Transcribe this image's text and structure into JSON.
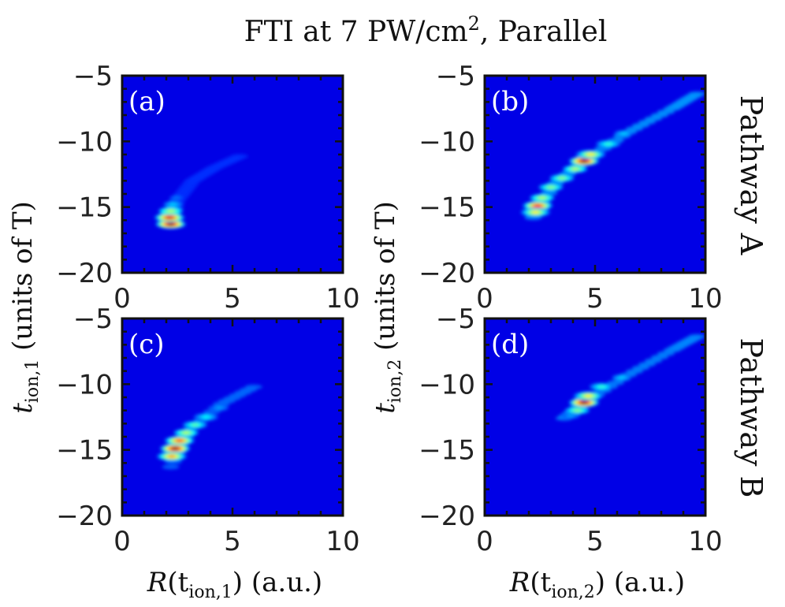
{
  "figure": {
    "title_main": "FTI at 7 PW/cm",
    "title_sup": "2",
    "title_tail": ", Parallel",
    "ylabel_left": {
      "var": "t",
      "sub": "ion,1",
      "rest": " (units of T)"
    },
    "ylabel_right": {
      "var": "t",
      "sub": "ion,2",
      "rest": " (units of T)"
    },
    "xlabel_left": {
      "var": "R",
      "open": "(t",
      "sub": "ion,1",
      "rest": ") (a.u.)"
    },
    "xlabel_right": {
      "var": "R",
      "open": "(t",
      "sub": "ion,2",
      "rest": ") (a.u.)"
    },
    "row_labels": [
      "Pathway A",
      "Pathway B"
    ]
  },
  "chart_data": [
    {
      "type": "heatmap",
      "panel_label": "(a)",
      "xlim": [
        0,
        10
      ],
      "ylim": [
        -20,
        -5
      ],
      "xticks": [
        0,
        5,
        10
      ],
      "yticks": [
        -20,
        -15,
        -10,
        -5
      ],
      "colormap": "jet",
      "peaks": [
        {
          "x": 2.2,
          "y": -16.3,
          "intensity": 1.0
        },
        {
          "x": 2.15,
          "y": -15.8,
          "intensity": 0.9
        },
        {
          "x": 2.2,
          "y": -15.3,
          "intensity": 0.5
        },
        {
          "x": 2.3,
          "y": -14.8,
          "intensity": 0.25
        },
        {
          "x": 2.45,
          "y": -14.3,
          "intensity": 0.15
        }
      ],
      "ridge": [
        [
          2.2,
          -16.5
        ],
        [
          2.5,
          -14.5
        ],
        [
          3.2,
          -13
        ],
        [
          4.2,
          -12
        ],
        [
          5.5,
          -11
        ]
      ],
      "ridge_intensity": 0.08
    },
    {
      "type": "heatmap",
      "panel_label": "(b)",
      "xlim": [
        0,
        10
      ],
      "ylim": [
        -20,
        -5
      ],
      "xticks": [
        0,
        5,
        10
      ],
      "yticks": [
        -20,
        -15,
        -10,
        -5
      ],
      "colormap": "jet",
      "peaks": [
        {
          "x": 4.5,
          "y": -11.5,
          "intensity": 1.0
        },
        {
          "x": 4.8,
          "y": -11.0,
          "intensity": 0.6
        },
        {
          "x": 4.1,
          "y": -12.1,
          "intensity": 0.5
        },
        {
          "x": 2.4,
          "y": -14.9,
          "intensity": 0.85
        },
        {
          "x": 2.3,
          "y": -15.4,
          "intensity": 0.6
        },
        {
          "x": 2.6,
          "y": -14.3,
          "intensity": 0.5
        },
        {
          "x": 3.0,
          "y": -13.5,
          "intensity": 0.45
        },
        {
          "x": 3.5,
          "y": -12.8,
          "intensity": 0.45
        },
        {
          "x": 5.6,
          "y": -10.2,
          "intensity": 0.35
        },
        {
          "x": 6.3,
          "y": -9.4,
          "intensity": 0.25
        }
      ],
      "ridge": [
        [
          2.2,
          -15.8
        ],
        [
          3.2,
          -13.2
        ],
        [
          4.5,
          -11.5
        ],
        [
          6.5,
          -9.3
        ],
        [
          8.5,
          -7.5
        ],
        [
          9.8,
          -6.2
        ]
      ],
      "ridge_intensity": 0.2
    },
    {
      "type": "heatmap",
      "panel_label": "(c)",
      "xlim": [
        0,
        10
      ],
      "ylim": [
        -20,
        -5
      ],
      "xticks": [
        0,
        5,
        10
      ],
      "yticks": [
        -20,
        -15,
        -10,
        -5
      ],
      "colormap": "jet",
      "peaks": [
        {
          "x": 2.4,
          "y": -14.9,
          "intensity": 1.0
        },
        {
          "x": 2.6,
          "y": -14.3,
          "intensity": 0.8
        },
        {
          "x": 2.25,
          "y": -15.5,
          "intensity": 0.7
        },
        {
          "x": 2.9,
          "y": -13.7,
          "intensity": 0.5
        },
        {
          "x": 3.3,
          "y": -13.1,
          "intensity": 0.4
        },
        {
          "x": 3.8,
          "y": -12.5,
          "intensity": 0.3
        },
        {
          "x": 4.4,
          "y": -11.8,
          "intensity": 0.2
        }
      ],
      "ridge": [
        [
          2.2,
          -16.3
        ],
        [
          3.0,
          -13.6
        ],
        [
          4.5,
          -11.5
        ],
        [
          6.2,
          -10.0
        ]
      ],
      "ridge_intensity": 0.15
    },
    {
      "type": "heatmap",
      "panel_label": "(d)",
      "xlim": [
        0,
        10
      ],
      "ylim": [
        -20,
        -5
      ],
      "xticks": [
        0,
        5,
        10
      ],
      "yticks": [
        -20,
        -15,
        -10,
        -5
      ],
      "colormap": "jet",
      "peaks": [
        {
          "x": 4.5,
          "y": -11.4,
          "intensity": 1.0
        },
        {
          "x": 4.7,
          "y": -10.9,
          "intensity": 0.6
        },
        {
          "x": 4.2,
          "y": -12.0,
          "intensity": 0.45
        },
        {
          "x": 5.3,
          "y": -10.2,
          "intensity": 0.35
        },
        {
          "x": 3.9,
          "y": -12.4,
          "intensity": 0.2
        },
        {
          "x": 6.2,
          "y": -9.5,
          "intensity": 0.25
        }
      ],
      "ridge": [
        [
          3.6,
          -12.6
        ],
        [
          4.5,
          -11.4
        ],
        [
          6.5,
          -9.3
        ],
        [
          8.5,
          -7.4
        ],
        [
          9.8,
          -6.2
        ]
      ],
      "ridge_intensity": 0.18
    }
  ]
}
